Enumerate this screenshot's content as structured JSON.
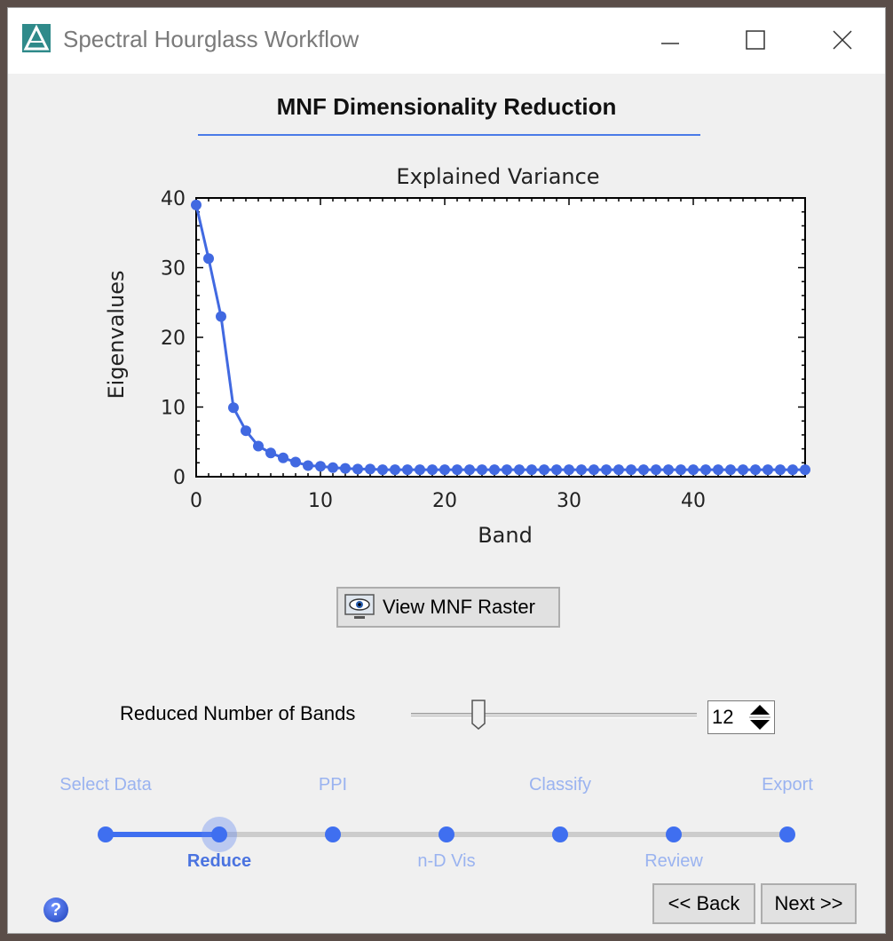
{
  "window": {
    "title": "Spectral Hourglass Workflow"
  },
  "page": {
    "heading": "MNF Dimensionality Reduction"
  },
  "chart_data": {
    "type": "line",
    "title": "Explained Variance",
    "xlabel": "Band",
    "ylabel": "Eigenvalues",
    "xlim": [
      0,
      49
    ],
    "ylim": [
      0,
      40
    ],
    "xticks": [
      0,
      10,
      20,
      30,
      40
    ],
    "yticks": [
      0,
      10,
      20,
      30,
      40
    ],
    "series": [
      {
        "color": "#4169e1",
        "x": [
          0,
          1,
          2,
          3,
          4,
          5,
          6,
          7,
          8,
          9,
          10,
          11,
          12,
          13,
          14,
          15,
          16,
          17,
          18,
          19,
          20,
          21,
          22,
          23,
          24,
          25,
          26,
          27,
          28,
          29,
          30,
          31,
          32,
          33,
          34,
          35,
          36,
          37,
          38,
          39,
          40,
          41,
          42,
          43,
          44,
          45,
          46,
          47,
          48,
          49
        ],
        "y": [
          39,
          31.3,
          23,
          9.9,
          6.6,
          4.4,
          3.4,
          2.7,
          2.1,
          1.6,
          1.5,
          1.3,
          1.2,
          1.1,
          1.1,
          1.0,
          1.0,
          1.0,
          1.0,
          1.0,
          1.0,
          1.0,
          1.0,
          1.0,
          1.0,
          1.0,
          1.0,
          1.0,
          1.0,
          1.0,
          1.0,
          1.0,
          1.0,
          1.0,
          1.0,
          1.0,
          1.0,
          1.0,
          1.0,
          1.0,
          1.0,
          1.0,
          1.0,
          1.0,
          1.0,
          1.0,
          1.0,
          1.0,
          1.0,
          1.0
        ]
      }
    ]
  },
  "view_button": {
    "label": "View MNF Raster"
  },
  "bands": {
    "label": "Reduced Number of Bands",
    "value": "12"
  },
  "steps": {
    "items": [
      {
        "label": "Select Data",
        "state": "done"
      },
      {
        "label": "Reduce",
        "state": "active"
      },
      {
        "label": "PPI",
        "state": "pending"
      },
      {
        "label": "n-D Vis",
        "state": "pending"
      },
      {
        "label": "Classify",
        "state": "pending"
      },
      {
        "label": "Review",
        "state": "pending"
      },
      {
        "label": "Export",
        "state": "pending"
      }
    ]
  },
  "nav": {
    "help": "?",
    "back_label": "<< Back",
    "next_label": "Next >>"
  },
  "colors": {
    "accent": "#3f6ff0",
    "pending_label": "#9ab3f0",
    "track": "#cccccc"
  }
}
